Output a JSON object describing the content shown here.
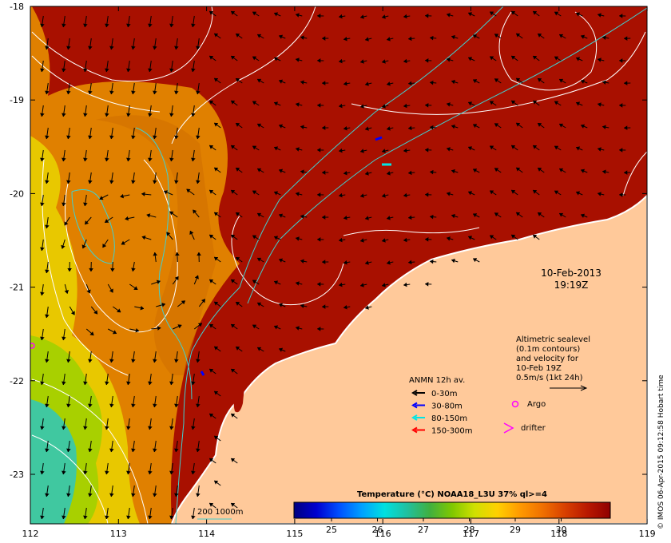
{
  "map": {
    "date": "10-Feb-2013",
    "time": "19:19Z",
    "lat_ticks": [
      "-18",
      "-19",
      "-20",
      "-21",
      "-22",
      "-23"
    ],
    "lon_ticks": [
      "112",
      "113",
      "114",
      "115",
      "116",
      "117",
      "118",
      "119"
    ],
    "sealevel_legend": [
      "Altimetric sealevel",
      "(0.1m contours)",
      "and velocity for",
      "10-Feb 19Z",
      "0.5m/s (1kt 24h)"
    ],
    "anmn": {
      "title": "ANMN 12h av.",
      "items": [
        {
          "label": "0-30m",
          "color": "#000000"
        },
        {
          "label": "30-80m",
          "color": "#0000ff"
        },
        {
          "label": "80-150m",
          "color": "#00e5e5"
        },
        {
          "label": "150-300m",
          "color": "#ff0000"
        }
      ]
    },
    "argo_label": "Argo",
    "drifter_label": "drifter",
    "bathy_label": "200  1000m",
    "colorbar": {
      "title": "Temperature (°C) NOAA18_L3U 37% ql>=4",
      "ticks": [
        "25",
        "26",
        "27",
        "28",
        "29",
        "30"
      ],
      "colors": [
        "#00007f",
        "#0000d0",
        "#0050ff",
        "#00a0ff",
        "#00e0e0",
        "#20c0a0",
        "#40b040",
        "#80c800",
        "#d0e000",
        "#ffd000",
        "#ff9a00",
        "#f07000",
        "#d84000",
        "#b81800",
        "#900000"
      ]
    },
    "credit": "© IMOS 06-Apr-2015 09:12:58 Hobart time",
    "colors": {
      "hot_sst": "#a81000",
      "land": "#ffc99a",
      "warm_sst": "#e89000",
      "cool_sst": "#40c8a0"
    }
  }
}
